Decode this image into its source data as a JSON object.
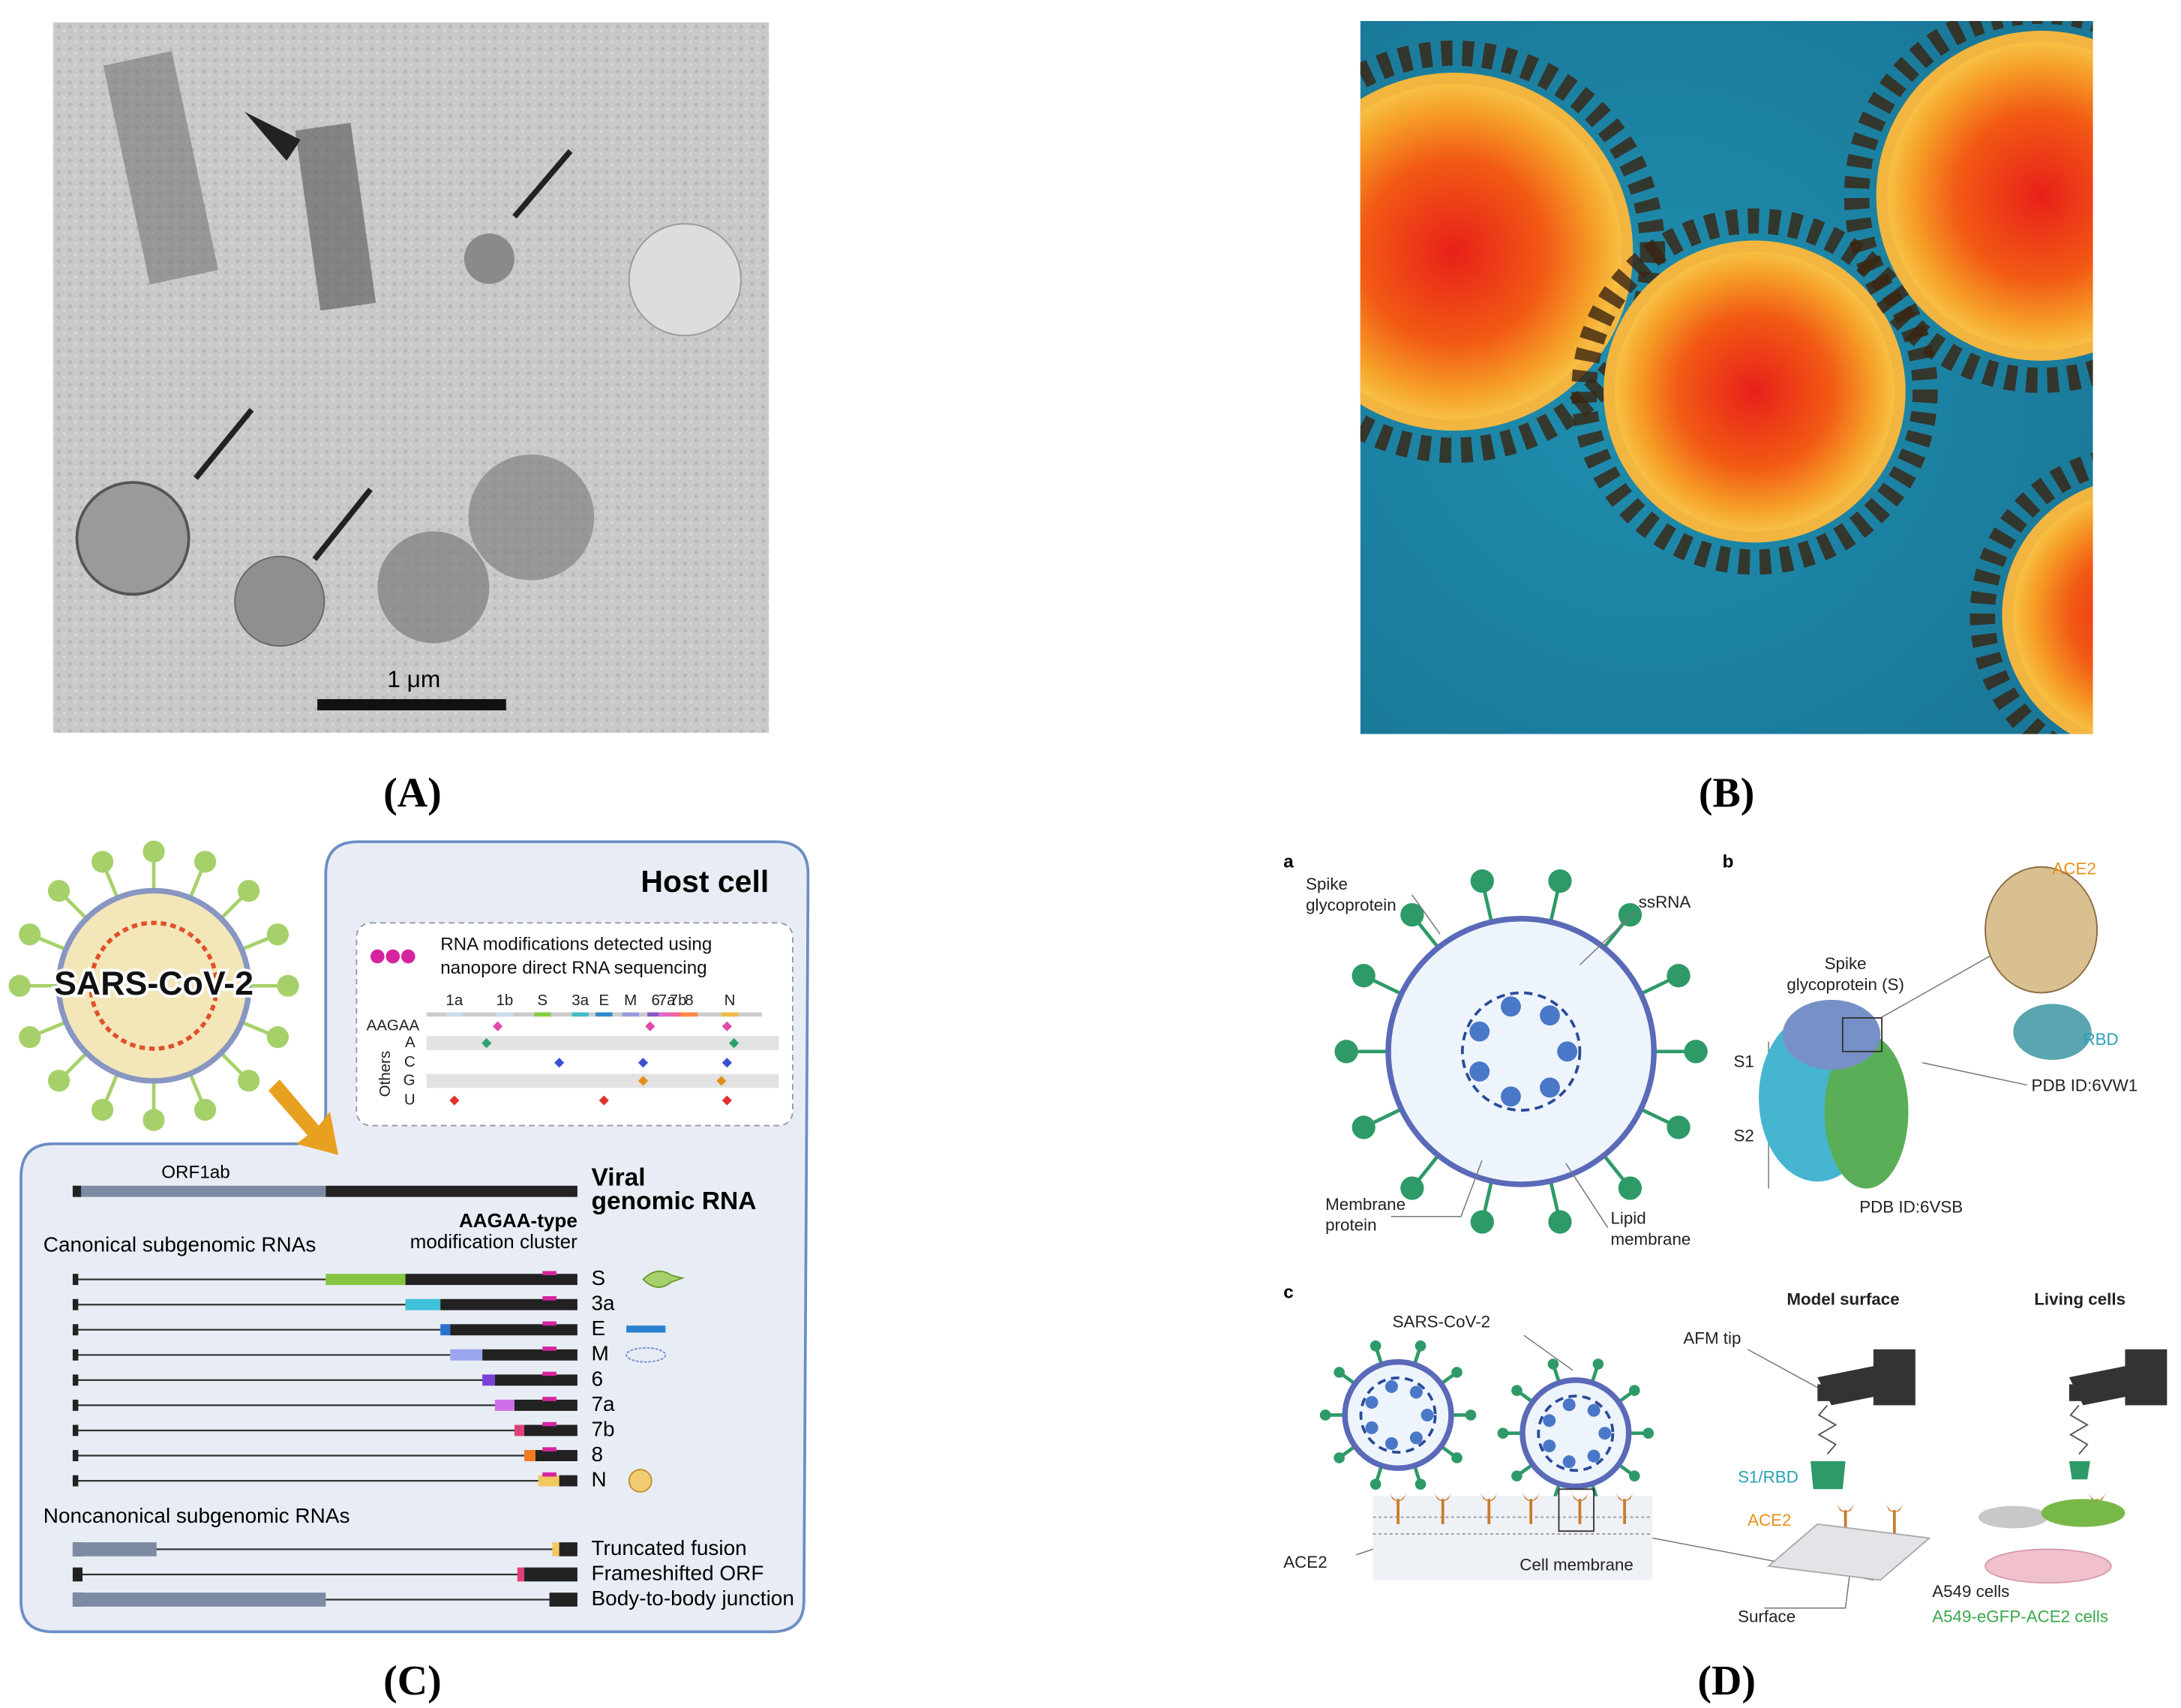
{
  "panel_a": {
    "scale_bar": "1 μm",
    "caption": "(A)"
  },
  "panel_b": {
    "caption": "(B)"
  },
  "panel_c": {
    "title": "Host cell",
    "virus": "SARS-CoV-2",
    "legend": [
      "RNA modifications detected using",
      "nanopore direct RNA sequencing"
    ],
    "genes": [
      "1a",
      "1b",
      "S",
      "3a",
      "E",
      "M",
      "6",
      "7a",
      "7b",
      "8",
      "N"
    ],
    "rows": [
      "AAGAA",
      "A",
      "C",
      "G",
      "U"
    ],
    "others": "Others",
    "orf": "ORF1ab",
    "genomic": [
      "Viral",
      "genomic RNA"
    ],
    "canonical_title": "Canonical subgenomic RNAs",
    "cluster": [
      "AAGAA-type",
      "modification cluster"
    ],
    "canonical": [
      "S",
      "3a",
      "E",
      "M",
      "6",
      "7a",
      "7b",
      "8",
      "N"
    ],
    "noncanonical_title": "Noncanonical subgenomic RNAs",
    "noncanonical": [
      "Truncated fusion",
      "Frameshifted ORF",
      "Body-to-body junction"
    ],
    "caption": "(C)"
  },
  "panel_d": {
    "labels": [
      "a",
      "b",
      "c"
    ],
    "spike": [
      "Spike",
      "glycoprotein"
    ],
    "ssrna": "ssRNA",
    "membrane_protein": [
      "Membrane",
      "protein"
    ],
    "lipid": [
      "Lipid",
      "membrane"
    ],
    "ace2_top": "ACE2",
    "rbd": "RBD",
    "spike_s": [
      "Spike",
      "glycoprotein (S)"
    ],
    "s1": "S1",
    "s2": "S2",
    "pdb1": "PDB ID:6VW1",
    "pdb2": "PDB ID:6VSB",
    "virus": "SARS-CoV-2",
    "model_surface": "Model surface",
    "living_cells": "Living cells",
    "afm_tip": "AFM tip",
    "s1rbd": "S1/RBD",
    "ace2_mid": "ACE2",
    "ace2_left": "ACE2",
    "cell_membrane": "Cell membrane",
    "surface": "Surface",
    "a549": "A549 cells",
    "a549_egfp": "A549-eGFP-ACE2 cells",
    "caption": "(D)"
  }
}
